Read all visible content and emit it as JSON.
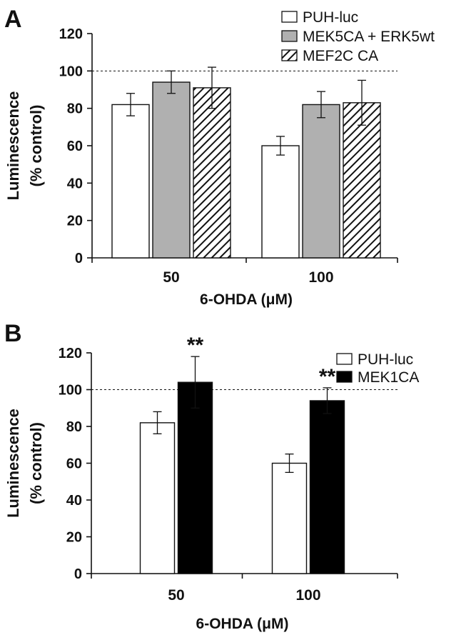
{
  "chart_data": [
    {
      "panel_label": "A",
      "type": "bar",
      "categories": [
        "50",
        "100"
      ],
      "series": [
        {
          "name": "PUH-luc",
          "values": [
            82,
            60
          ],
          "errors": [
            6,
            5
          ],
          "fill": "#ffffff",
          "pattern": "none"
        },
        {
          "name": "MEK5CA + ERK5wt",
          "values": [
            94,
            82
          ],
          "errors": [
            6,
            7
          ],
          "fill": "#b0b0b0",
          "pattern": "none"
        },
        {
          "name": "MEF2C CA",
          "values": [
            91,
            83
          ],
          "errors": [
            11,
            12
          ],
          "fill": "#ffffff",
          "pattern": "diagonal-hatch"
        }
      ],
      "ylabel": [
        "Luminescence",
        "(% control)"
      ],
      "xlabel": "6-OHDA (μM)",
      "ylim": [
        0,
        120
      ],
      "yticks": [
        "0",
        "20",
        "40",
        "60",
        "80",
        "100",
        "120"
      ],
      "reference_line": 100,
      "annotations": [],
      "legend": "top-right",
      "grid": false
    },
    {
      "panel_label": "B",
      "type": "bar",
      "categories": [
        "50",
        "100"
      ],
      "series": [
        {
          "name": "PUH-luc",
          "values": [
            82,
            60
          ],
          "errors": [
            6,
            5
          ],
          "fill": "#ffffff",
          "pattern": "none"
        },
        {
          "name": "MEK1CA",
          "values": [
            104,
            94
          ],
          "errors": [
            14,
            7
          ],
          "fill": "#000000",
          "pattern": "none"
        }
      ],
      "ylabel": [
        "Luminescence",
        "(% control)"
      ],
      "xlabel": "6-OHDA (μM)",
      "ylim": [
        0,
        120
      ],
      "yticks": [
        "0",
        "20",
        "40",
        "60",
        "80",
        "100",
        "120"
      ],
      "reference_line": 100,
      "annotations": [
        {
          "text": "**",
          "category": 0,
          "series": 1
        },
        {
          "text": "**",
          "category": 1,
          "series": 1
        }
      ],
      "legend": "top-right",
      "grid": false
    }
  ]
}
